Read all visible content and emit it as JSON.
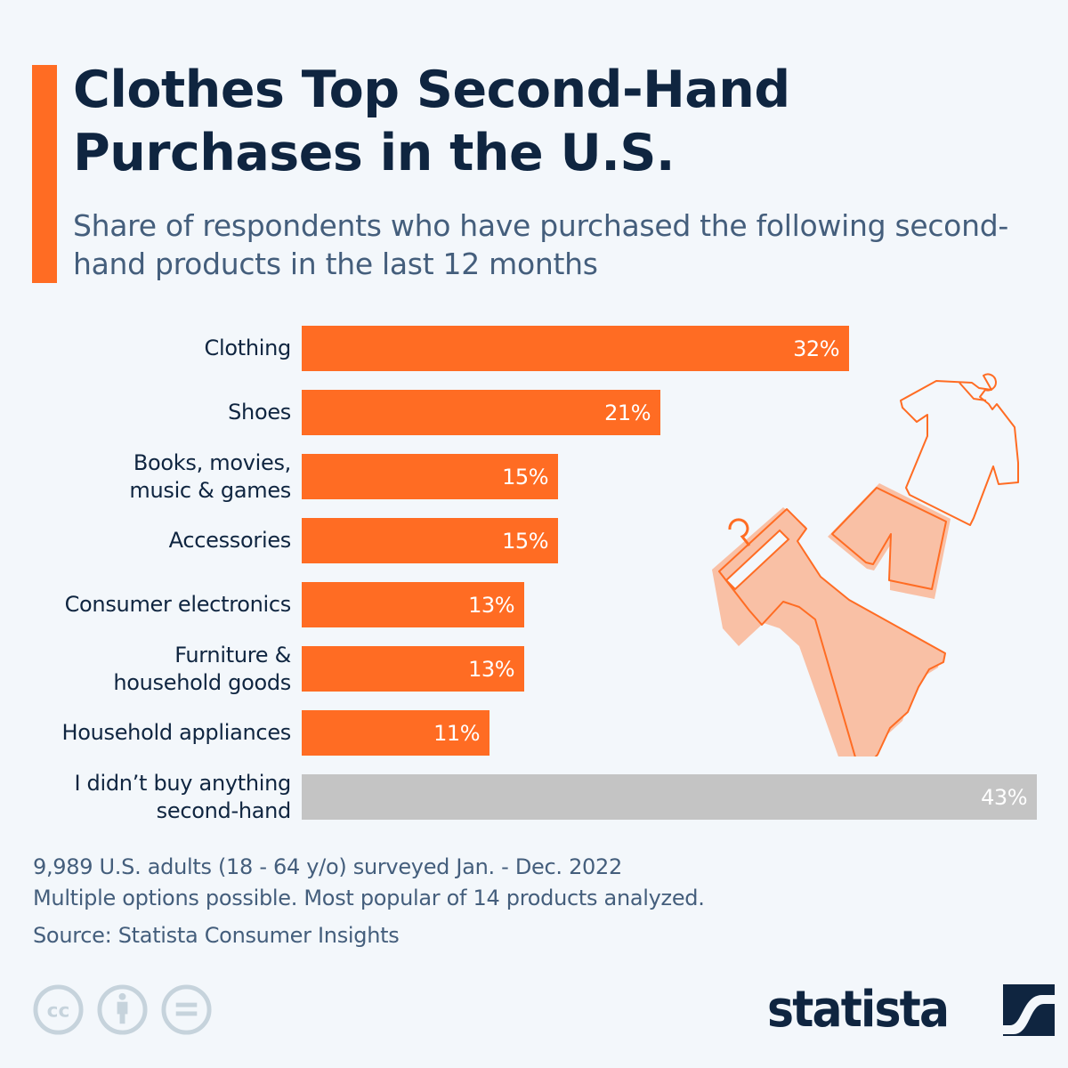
{
  "header": {
    "title": "Clothes Top Second-Hand Purchases in the U.S.",
    "subtitle": "Share of respondents who have purchased the following second-hand products in the last 12 months"
  },
  "colors": {
    "accent": "#ff6c23",
    "bar_primary": "#ff6c23",
    "bar_secondary": "#c4c4c4",
    "title_text": "#0f2540",
    "subtitle_text": "#445e7c",
    "background": "#f3f7fb",
    "illustration_fill": "#f9c0a5",
    "cc_icons": "#c6d3dc"
  },
  "chart_data": {
    "type": "bar",
    "orientation": "horizontal",
    "title": "Clothes Top Second-Hand Purchases in the U.S.",
    "subtitle": "Share of respondents who have purchased the following second-hand products in the last 12 months",
    "categories": [
      "Clothing",
      "Shoes",
      "Books, movies, music & games",
      "Accessories",
      "Consumer electronics",
      "Furniture & household goods",
      "Household appliances",
      "I didn’t buy anything second-hand"
    ],
    "values": [
      32,
      21,
      15,
      15,
      13,
      13,
      11,
      43
    ],
    "unit": "%",
    "xlabel": "",
    "ylabel": "",
    "xlim": [
      0,
      43
    ],
    "grid": false,
    "legend": null,
    "data_labels": true,
    "highlight": {
      "I didn’t buy anything second-hand": "gray"
    }
  },
  "bars": [
    {
      "label": "Clothing",
      "value": 32,
      "value_label": "32%",
      "color": "#ff6c23"
    },
    {
      "label": "Shoes",
      "value": 21,
      "value_label": "21%",
      "color": "#ff6c23"
    },
    {
      "label": "Books, movies,\nmusic & games",
      "value": 15,
      "value_label": "15%",
      "color": "#ff6c23"
    },
    {
      "label": "Accessories",
      "value": 15,
      "value_label": "15%",
      "color": "#ff6c23"
    },
    {
      "label": "Consumer electronics",
      "value": 13,
      "value_label": "13%",
      "color": "#ff6c23"
    },
    {
      "label": "Furniture &\nhousehold goods",
      "value": 13,
      "value_label": "13%",
      "color": "#ff6c23"
    },
    {
      "label": "Household appliances",
      "value": 11,
      "value_label": "11%",
      "color": "#ff6c23"
    },
    {
      "label": "I didn’t buy anything\nsecond-hand",
      "value": 43,
      "value_label": "43%",
      "color": "#c4c4c4"
    }
  ],
  "footer": {
    "note_1": "9,989 U.S. adults (18 - 64 y/o) surveyed Jan. - Dec. 2022",
    "note_2": "Multiple options possible. Most popular of 14 products analyzed.",
    "source": "Source: Statista Consumer Insights",
    "license_icons": [
      "cc-icon",
      "attribution-icon",
      "no-derivatives-icon"
    ],
    "logo_text": "statista"
  }
}
